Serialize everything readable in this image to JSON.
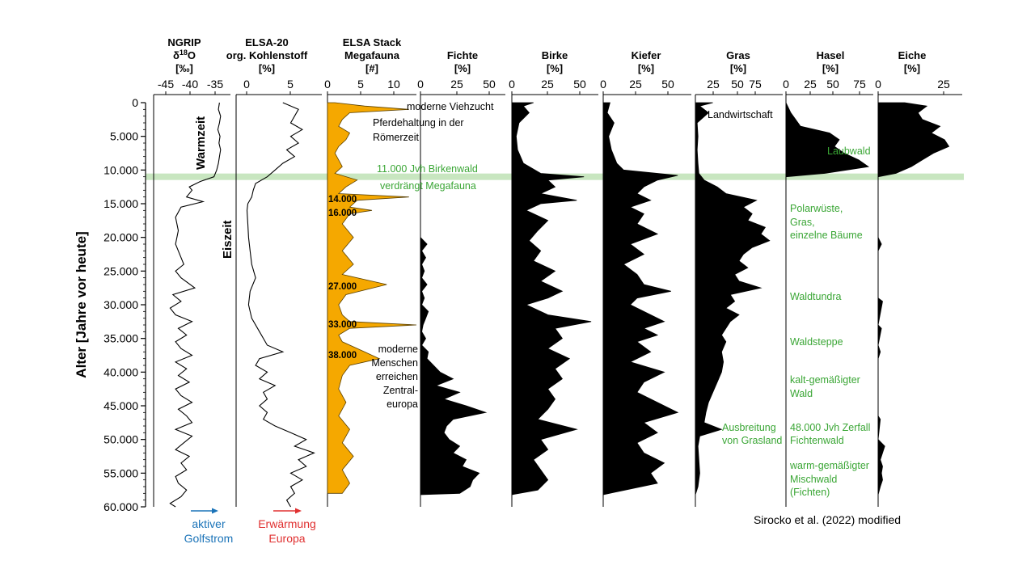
{
  "chart_data": {
    "type": "area",
    "y_axis": {
      "label": "Alter [Jahre vor heute]",
      "ticks": [
        "0",
        "5.000",
        "10.000",
        "15.000",
        "20.000",
        "25.000",
        "30.000",
        "35.000",
        "40.000",
        "45.000",
        "50.000",
        "55.000",
        "60.000"
      ],
      "ylim": [
        0,
        60000
      ],
      "reversed": true
    },
    "highlight_band": {
      "age": 11000,
      "color": "#c8e6c0"
    },
    "panels": [
      {
        "id": "ngrip",
        "title_lines": [
          "NGRIP",
          "δ18O",
          "[‰]"
        ],
        "ticks": [
          "-45",
          "-40",
          "-35"
        ],
        "xlim": [
          -47,
          -33
        ],
        "style": "line",
        "ages": [
          0,
          1000,
          2000,
          3000,
          4000,
          5000,
          6000,
          7000,
          8000,
          9000,
          10000,
          11000,
          11700,
          12500,
          13000,
          14000,
          14700,
          15500,
          17000,
          19000,
          21000,
          23000,
          24000,
          25000,
          26000,
          27500,
          28500,
          29500,
          30500,
          31500,
          32500,
          33500,
          34500,
          35500,
          36500,
          37500,
          38500,
          39500,
          40500,
          41500,
          42500,
          43500,
          44500,
          45500,
          46500,
          47500,
          48500,
          49500,
          50500,
          51500,
          52500,
          53500,
          54500,
          55500,
          56500,
          57500,
          58500,
          59500,
          60000
        ],
        "values": [
          -35,
          -35.2,
          -34.8,
          -35,
          -35.3,
          -34.9,
          -35.1,
          -34.8,
          -35,
          -35.2,
          -35.5,
          -36,
          -38.5,
          -40.5,
          -40,
          -41,
          -38,
          -42,
          -43,
          -42.5,
          -43,
          -42,
          -41.5,
          -43,
          -42,
          -39.5,
          -43.5,
          -42,
          -44,
          -43,
          -40,
          -42.5,
          -41,
          -43,
          -42,
          -40,
          -43,
          -41,
          -42.5,
          -40.5,
          -43,
          -42,
          -40,
          -42.5,
          -41,
          -40,
          -43,
          -40,
          -41.5,
          -43,
          -40.5,
          -42,
          -41,
          -43,
          -42.5,
          -41,
          -42,
          -44,
          -43
        ]
      },
      {
        "id": "kohlenstoff",
        "title_lines": [
          "ELSA-20",
          "org. Kohlenstoff",
          "[%]"
        ],
        "ticks": [
          "0",
          "5"
        ],
        "xlim": [
          -1,
          10
        ],
        "style": "line",
        "ages": [
          0,
          1000,
          2000,
          3000,
          4000,
          5000,
          6000,
          7000,
          8000,
          9000,
          10000,
          11000,
          12000,
          13000,
          14000,
          15000,
          16000,
          18000,
          20000,
          22000,
          24000,
          26000,
          28000,
          30000,
          32000,
          34000,
          36000,
          37000,
          38000,
          39000,
          40000,
          41000,
          42000,
          43000,
          44000,
          45000,
          46000,
          47000,
          48000,
          49000,
          50000,
          51000,
          52000,
          53000,
          54000,
          55000,
          56000,
          57000,
          58000,
          59000,
          60000
        ],
        "values": [
          5,
          7,
          6.5,
          6,
          7.5,
          6,
          7,
          5.5,
          6.5,
          5,
          4,
          3,
          1.5,
          1.2,
          1,
          0.5,
          0.4,
          0.5,
          0.6,
          0.8,
          1,
          1.5,
          0.8,
          0.6,
          1,
          2,
          3,
          5,
          2,
          1.5,
          3,
          2,
          4,
          2.5,
          3,
          2,
          3,
          2.5,
          4,
          6,
          8,
          6.5,
          9,
          7,
          8,
          6,
          7.5,
          6,
          6.5,
          5.5,
          6
        ]
      },
      {
        "id": "megafauna",
        "title_lines": [
          "ELSA Stack",
          "Megafauna",
          "[#]"
        ],
        "ticks": [
          "0",
          "5",
          "10"
        ],
        "xlim": [
          0,
          12
        ],
        "style": "fill",
        "fill": "#f5a800",
        "ages": [
          0,
          500,
          1000,
          1500,
          2500,
          3500,
          4500,
          5500,
          6500,
          7500,
          8500,
          9500,
          10500,
          11500,
          12500,
          13500,
          14000,
          14500,
          15500,
          16000,
          16500,
          18000,
          20000,
          22000,
          24000,
          25500,
          27000,
          28500,
          30000,
          31500,
          32500,
          33000,
          33500,
          34500,
          35500,
          37000,
          38000,
          39000,
          40500,
          42500,
          44500,
          46500,
          48500,
          50500,
          52500,
          54500,
          56500,
          58000
        ],
        "values": [
          1,
          5,
          11,
          3,
          2,
          1.5,
          3,
          2.5,
          1.5,
          1,
          1.5,
          2,
          1,
          4,
          2.5,
          1.5,
          11,
          4,
          3,
          6,
          3,
          2,
          3.5,
          2,
          3.5,
          2,
          8,
          2.5,
          1.5,
          2,
          3,
          12,
          3,
          1.5,
          2,
          5,
          7,
          3,
          2,
          1.5,
          2.5,
          1.5,
          3,
          2,
          3.5,
          2,
          3,
          2
        ]
      },
      {
        "id": "fichte",
        "title_lines": [
          "Fichte",
          "[%]"
        ],
        "ticks": [
          "0",
          "25",
          "50"
        ],
        "xlim": [
          0,
          65
        ],
        "style": "fill",
        "fill": "#000",
        "ages": [
          0,
          20000,
          21000,
          22000,
          23000,
          24000,
          25000,
          26000,
          27000,
          28000,
          29000,
          30000,
          31000,
          32000,
          33000,
          34000,
          35000,
          36000,
          37000,
          38000,
          39000,
          40000,
          41000,
          42000,
          43000,
          44000,
          45000,
          46000,
          47000,
          48000,
          49000,
          50000,
          51000,
          52000,
          53000,
          54000,
          55000,
          56000,
          57000,
          58000,
          58200
        ],
        "values": [
          0,
          0,
          5,
          1,
          4,
          1,
          3,
          1,
          5,
          1,
          3,
          1,
          6,
          4,
          2,
          1,
          4,
          1,
          6,
          5,
          10,
          15,
          25,
          12,
          30,
          18,
          35,
          50,
          25,
          20,
          18,
          22,
          30,
          25,
          35,
          32,
          45,
          40,
          38,
          30,
          0
        ]
      },
      {
        "id": "birke",
        "title_lines": [
          "Birke",
          "[%]"
        ],
        "ticks": [
          "0",
          "25",
          "50"
        ],
        "xlim": [
          0,
          60
        ],
        "style": "fill",
        "fill": "#000",
        "ages": [
          0,
          500,
          1500,
          3000,
          5000,
          7000,
          9000,
          10500,
          11000,
          11500,
          12500,
          13500,
          14500,
          15000,
          16000,
          17500,
          19000,
          20500,
          22000,
          23500,
          25000,
          26500,
          28000,
          29000,
          30000,
          31500,
          32500,
          33500,
          35000,
          36500,
          38000,
          39500,
          41000,
          42500,
          44000,
          45500,
          47000,
          48500,
          50000,
          51500,
          53000,
          54500,
          56000,
          57500,
          58200
        ],
        "values": [
          15,
          8,
          12,
          5,
          3,
          4,
          8,
          20,
          50,
          25,
          30,
          20,
          45,
          20,
          10,
          25,
          18,
          12,
          20,
          15,
          30,
          20,
          35,
          25,
          10,
          25,
          55,
          30,
          35,
          25,
          40,
          30,
          35,
          25,
          30,
          25,
          18,
          45,
          20,
          25,
          15,
          20,
          25,
          18,
          0
        ]
      },
      {
        "id": "kiefer",
        "title_lines": [
          "Kiefer",
          "[%]"
        ],
        "ticks": [
          "0",
          "25",
          "50"
        ],
        "xlim": [
          0,
          65
        ],
        "style": "fill",
        "fill": "#000",
        "ages": [
          0,
          1500,
          3000,
          5000,
          7000,
          9000,
          10000,
          10800,
          11500,
          12500,
          13500,
          14500,
          15500,
          16500,
          18000,
          19500,
          21000,
          22500,
          24000,
          25500,
          27000,
          28000,
          29000,
          30000,
          31500,
          32500,
          33500,
          34500,
          35500,
          37000,
          38500,
          40000,
          41500,
          43000,
          44500,
          46000,
          47500,
          49000,
          50500,
          52000,
          53500,
          55000,
          56500,
          58200
        ],
        "values": [
          5,
          3,
          8,
          4,
          6,
          10,
          15,
          55,
          40,
          30,
          25,
          35,
          20,
          30,
          25,
          40,
          20,
          30,
          15,
          25,
          30,
          50,
          25,
          20,
          35,
          45,
          30,
          40,
          25,
          35,
          20,
          45,
          30,
          25,
          40,
          55,
          30,
          40,
          25,
          30,
          45,
          35,
          40,
          0
        ]
      },
      {
        "id": "gras",
        "title_lines": [
          "Gras",
          "[%]"
        ],
        "ticks": [
          "25",
          "50",
          "75"
        ],
        "xlim": [
          0,
          100
        ],
        "style": "fill",
        "fill": "#000",
        "ages": [
          0,
          500,
          1500,
          3000,
          5000,
          7000,
          9000,
          10500,
          11500,
          12500,
          13500,
          14500,
          15500,
          16500,
          17500,
          18500,
          19500,
          20500,
          21500,
          22500,
          23500,
          24500,
          25500,
          26500,
          27500,
          28500,
          29500,
          30500,
          31500,
          32500,
          33500,
          34500,
          35500,
          37000,
          38500,
          40000,
          41500,
          43000,
          44500,
          46000,
          47500,
          48500,
          49500,
          51000,
          53000,
          55000,
          57000,
          58200
        ],
        "values": [
          20,
          5,
          15,
          2,
          3,
          2,
          3,
          4,
          10,
          25,
          35,
          70,
          55,
          65,
          60,
          80,
          75,
          85,
          65,
          55,
          50,
          60,
          45,
          50,
          75,
          40,
          45,
          35,
          50,
          40,
          35,
          30,
          35,
          30,
          32,
          30,
          25,
          20,
          15,
          12,
          10,
          30,
          5,
          3,
          4,
          5,
          3,
          0
        ]
      },
      {
        "id": "hasel",
        "title_lines": [
          "Hasel",
          "[%]"
        ],
        "ticks": [
          "0",
          "25",
          "50",
          "75"
        ],
        "xlim": [
          0,
          90
        ],
        "style": "fill",
        "fill": "#000",
        "ages": [
          0,
          1500,
          2500,
          3500,
          4500,
          5500,
          6500,
          7500,
          8500,
          9500,
          10500,
          11000,
          58200
        ],
        "values": [
          0,
          5,
          10,
          15,
          45,
          55,
          50,
          60,
          75,
          85,
          40,
          0,
          0
        ]
      },
      {
        "id": "eiche",
        "title_lines": [
          "Eiche",
          "[%]"
        ],
        "ticks": [
          "0",
          "25"
        ],
        "xlim": [
          0,
          38
        ],
        "style": "fill",
        "fill": "#000",
        "ages": [
          0,
          500,
          1500,
          2500,
          3500,
          4500,
          5500,
          6500,
          7500,
          8500,
          9500,
          10500,
          11000,
          20000,
          21000,
          22000,
          29000,
          29500,
          33000,
          33500,
          36000,
          37000,
          38000,
          46500,
          47000,
          50000,
          51000,
          52000,
          53000,
          54000,
          55000,
          56000,
          57000,
          58200
        ],
        "values": [
          12,
          22,
          18,
          20,
          28,
          24,
          30,
          32,
          25,
          20,
          15,
          8,
          0,
          0,
          1.5,
          0,
          0,
          2,
          0,
          1.5,
          0,
          1,
          0,
          0,
          1,
          0,
          3,
          2,
          1,
          2,
          1.5,
          2,
          1,
          0
        ]
      }
    ],
    "annotations": {
      "warmzeit": "Warmzeit",
      "eiszeit": "Eiszeit",
      "viehzucht": "moderne Viehzucht",
      "pferde_1": "Pferdehaltung in der",
      "pferde_2": "Römerzeit",
      "birkenwald_1": "11.000 Jvh Birkenwald",
      "birkenwald_2": "verdrängt Megafauna",
      "stack_labels": [
        "14.000",
        "16.000",
        "27.000",
        "33.000",
        "38.000"
      ],
      "menschen": [
        "moderne",
        "Menschen",
        "erreichen",
        "Zentral-",
        "europa"
      ],
      "landwirtschaft": "Landwirtschaft",
      "grasland_1": "Ausbreitung",
      "grasland_2": "von Grasland",
      "laubwald": "Laubwald",
      "polarwueste": [
        "Polarwüste,",
        "Gras,",
        "einzelne Bäume"
      ],
      "waldtundra": "Waldtundra",
      "waldsteppe": "Waldsteppe",
      "kaltwald": [
        "kalt-gemäßigter",
        "Wald"
      ],
      "zerfall": [
        "48.000 Jvh Zerfall",
        "Fichtenwald"
      ],
      "mischwald": [
        "warm-gemäßigter",
        "Mischwald",
        "(Fichten)"
      ],
      "golfstrom": [
        "aktiver",
        "Golfstrom"
      ],
      "erwaermung": [
        "Erwärmung",
        "Europa"
      ],
      "citation": "Sirocko et al. (2022) modified"
    },
    "colors": {
      "green": "#3aa635",
      "blue": "#1a73b8",
      "red": "#e03030",
      "orange": "#f5a800",
      "band": "#c8e6c0"
    }
  }
}
